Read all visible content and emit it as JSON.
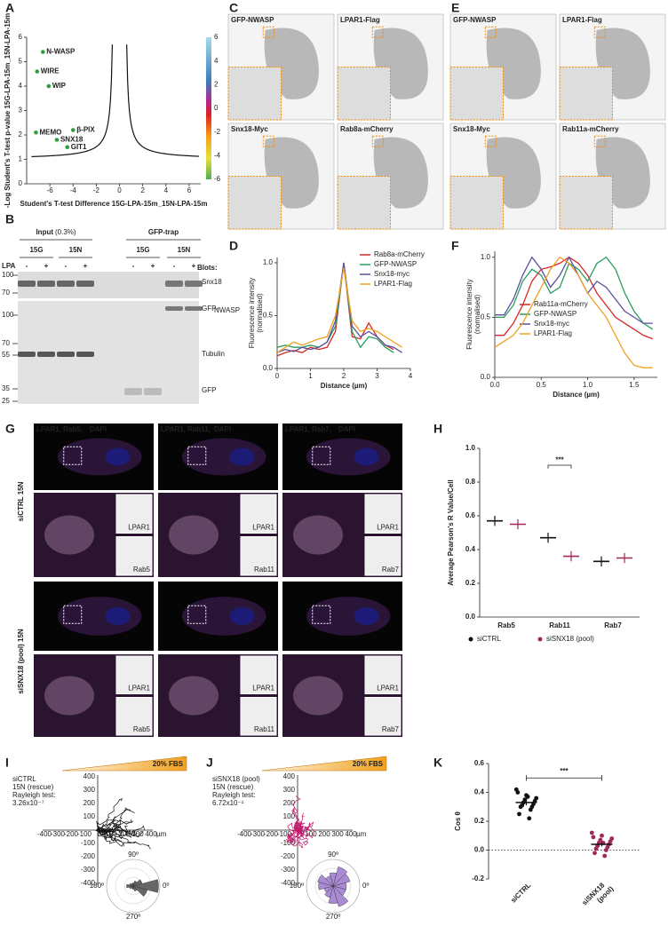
{
  "panel_labels": [
    "A",
    "B",
    "C",
    "D",
    "E",
    "F",
    "G",
    "H",
    "I",
    "J",
    "K"
  ],
  "A": {
    "type": "scatter",
    "xlabel": "Student's T-test Difference 15G-LPA-15m_15N-LPA-15m",
    "ylabel": "-Log Student's T-test p-value 15G-LPA-15m_15N-LPA-15m",
    "xlim": [
      -8,
      7
    ],
    "ylim": [
      0,
      6
    ],
    "xticks": [
      -6,
      -4,
      -2,
      0,
      2,
      4,
      6
    ],
    "yticks": [
      0,
      1,
      2,
      3,
      4,
      5,
      6
    ],
    "color": "#2e9e3a",
    "points": [
      {
        "label": "N-WASP",
        "x": -6.6,
        "y": 5.4
      },
      {
        "label": "WIRE",
        "x": -7.1,
        "y": 4.6
      },
      {
        "label": "WIP",
        "x": -6.1,
        "y": 4.0
      },
      {
        "label": "MEMO",
        "x": -7.2,
        "y": 2.1
      },
      {
        "label": "SNX18",
        "x": -5.4,
        "y": 1.8
      },
      {
        "label": "β-PIX",
        "x": -4.0,
        "y": 2.2
      },
      {
        "label": "GIT1",
        "x": -4.5,
        "y": 1.5
      }
    ],
    "colorbar_ticks": [
      6,
      4,
      2,
      0,
      -2,
      -4,
      -6
    ]
  },
  "B": {
    "input": "Input",
    "input_pct": "(0.3%)",
    "trap": "GFP-trap",
    "groups": [
      "15G",
      "15N",
      "15G",
      "15N"
    ],
    "lpa": "LPA",
    "signs": [
      "-",
      "+",
      "-",
      "+",
      "-",
      "+",
      "-",
      "+"
    ],
    "blots": "Blots:",
    "markers": [
      100,
      70,
      100,
      70,
      55,
      35,
      25
    ],
    "bands": [
      "Snx18",
      "GFP-",
      "NWASP",
      "Tubulin",
      "GFP"
    ]
  },
  "C": {
    "images": [
      {
        "text": "GFP-NWASP",
        "color": "#1a9641"
      },
      {
        "text": "LPAR1-Flag",
        "color": "#f08c00"
      },
      {
        "text": "Snx18-Myc",
        "color": "#3b3b9a"
      },
      {
        "text": "Rab8a-mCherry",
        "color": "#d42020"
      }
    ]
  },
  "E": {
    "images": [
      {
        "text": "GFP-NWASP",
        "color": "#1a9641"
      },
      {
        "text": "LPAR1-Flag",
        "color": "#f08c00"
      },
      {
        "text": "Snx18-Myc",
        "color": "#3b3b9a"
      },
      {
        "text": "Rab11a-mCherry",
        "color": "#d42020"
      }
    ]
  },
  "D": {
    "type": "line",
    "xlabel": "Distance (µm)",
    "ylabel": [
      "Fluorescence intensity",
      "(normalised)"
    ],
    "xlim": [
      0,
      4
    ],
    "ylim": [
      0,
      1.05
    ],
    "xticks": [
      0,
      1,
      2,
      3,
      4
    ],
    "yticks": [
      {
        "value": 0,
        "label": "0.0"
      },
      0.5,
      {
        "value": 1,
        "label": "1.0"
      }
    ],
    "x": [
      0,
      0.25,
      0.5,
      0.75,
      1,
      1.25,
      1.5,
      1.75,
      2,
      2.25,
      2.5,
      2.75,
      3,
      3.25,
      3.5,
      3.75,
      4
    ],
    "series": [
      {
        "name": "Rab8a-mCherry",
        "color": "#d62728",
        "values": [
          0.12,
          0.15,
          0.17,
          0.15,
          0.2,
          0.18,
          0.2,
          0.35,
          1.0,
          0.3,
          0.28,
          0.43,
          0.3,
          0.22,
          0.18,
          null,
          null
        ]
      },
      {
        "name": "GFP-NWASP",
        "color": "#2a9d5c",
        "values": [
          0.2,
          0.22,
          0.2,
          0.2,
          0.22,
          0.2,
          0.25,
          0.4,
          0.98,
          0.35,
          0.2,
          0.3,
          0.28,
          0.2,
          0.15,
          null,
          null
        ]
      },
      {
        "name": "Snx18-myc",
        "color": "#5a4fa0",
        "values": [
          0.15,
          0.18,
          0.16,
          0.2,
          0.18,
          0.2,
          0.25,
          0.45,
          1.0,
          0.4,
          0.3,
          0.35,
          0.3,
          0.22,
          0.2,
          0.15,
          null
        ]
      },
      {
        "name": "LPAR1-Flag",
        "color": "#f0a020",
        "values": [
          0.15,
          0.2,
          0.25,
          0.22,
          0.25,
          0.28,
          0.3,
          0.5,
          0.95,
          0.45,
          0.35,
          0.38,
          0.35,
          0.3,
          0.25,
          0.2,
          null
        ]
      }
    ]
  },
  "F": {
    "type": "line",
    "xlabel": "Distance (µm)",
    "ylabel": [
      "Fluorescence intensity",
      "(normalised)"
    ],
    "xlim": [
      0,
      1.75
    ],
    "ylim": [
      0,
      1.05
    ],
    "xticks": [
      {
        "value": 0,
        "label": "0.0"
      },
      0.5,
      {
        "value": 1,
        "label": "1.0"
      },
      1.5
    ],
    "yticks": [
      {
        "value": 0,
        "label": "0.0"
      },
      0.5,
      {
        "value": 1,
        "label": "1.0"
      }
    ],
    "x": [
      0,
      0.1,
      0.2,
      0.3,
      0.4,
      0.5,
      0.6,
      0.7,
      0.8,
      0.9,
      1.0,
      1.1,
      1.2,
      1.3,
      1.4,
      1.5,
      1.6,
      1.7
    ],
    "series": [
      {
        "name": "Rab11a-mCherry",
        "color": "#d62728",
        "values": [
          0.35,
          0.35,
          0.45,
          0.6,
          0.8,
          0.9,
          0.92,
          0.95,
          1.0,
          0.95,
          0.85,
          0.7,
          0.6,
          0.5,
          0.45,
          0.4,
          0.35,
          0.32
        ]
      },
      {
        "name": "GFP-NWASP",
        "color": "#2a9d5c",
        "values": [
          0.5,
          0.5,
          0.6,
          0.8,
          0.9,
          0.85,
          0.7,
          0.75,
          0.95,
          0.9,
          0.8,
          0.95,
          1.0,
          0.9,
          0.7,
          0.55,
          0.45,
          0.4
        ]
      },
      {
        "name": "Snx18-myc",
        "color": "#5a4fa0",
        "values": [
          0.52,
          0.52,
          0.65,
          0.85,
          1.0,
          0.9,
          0.75,
          0.85,
          1.0,
          0.85,
          0.7,
          0.8,
          0.75,
          0.65,
          0.55,
          0.5,
          0.45,
          0.45
        ]
      },
      {
        "name": "LPAR1-Flag",
        "color": "#f0a020",
        "values": [
          0.25,
          0.3,
          0.35,
          0.45,
          0.6,
          0.75,
          0.9,
          1.0,
          0.95,
          0.85,
          0.7,
          0.6,
          0.5,
          0.35,
          0.2,
          0.1,
          0.08,
          0.08
        ]
      }
    ]
  },
  "G": {
    "rows": [
      "siCTRL 15N",
      "siSNX18 (pool) 15N"
    ],
    "channel_colors": [
      "#4fd04f",
      "#e060e0",
      "#6a6aff"
    ],
    "columns": [
      {
        "channels": [
          "LPAR1,",
          "Rab5,",
          "DAPI"
        ],
        "insets": [
          "LPAR1",
          "Rab5"
        ]
      },
      {
        "channels": [
          "LPAR1,",
          "Rab11,",
          "DAPI"
        ],
        "insets": [
          "LPAR1",
          "Rab11"
        ]
      },
      {
        "channels": [
          "LPAR1,",
          "Rab7,",
          "DAPI"
        ],
        "insets": [
          "LPAR1",
          "Rab7"
        ]
      }
    ]
  },
  "H": {
    "type": "dot",
    "ylabel": "Average Pearson's R Value/Cell",
    "categories": [
      "Rab5",
      "Rab11",
      "Rab7"
    ],
    "ylim": [
      0,
      1.0
    ],
    "yticks": [
      {
        "value": 0,
        "label": "0.0"
      },
      0.2,
      0.4,
      0.6,
      0.8,
      {
        "value": 1,
        "label": "1.0"
      }
    ],
    "series": [
      {
        "name": "siCTRL",
        "color": "#111111",
        "values": [
          0.57,
          0.47,
          0.33
        ],
        "sem": [
          0.03,
          0.03,
          0.03
        ]
      },
      {
        "name": "siSNX18 (pool)",
        "color": "#a0285a",
        "values": [
          0.55,
          0.36,
          0.35
        ],
        "sem": [
          0.03,
          0.03,
          0.03
        ]
      }
    ],
    "significance": {
      "text": "***",
      "category": 1
    }
  },
  "I": {
    "gradient": "20% FBS",
    "lines": [
      "siCTRL",
      "15N (rescue)",
      "Rayleigh test:",
      "3.26x10⁻⁷"
    ],
    "axis_ticks": [
      -400,
      -300,
      -200,
      -100,
      100,
      200,
      300,
      400
    ],
    "unit": "µm",
    "angles": [
      "90º",
      "180º",
      "270º",
      "0º"
    ],
    "track_color": "#111111",
    "rose_color": "#666666",
    "rose": [
      0.95,
      0.35,
      0.2,
      0.12,
      0.1,
      0.15,
      0.25,
      0.15,
      0.1,
      0.12,
      0.2,
      0.55
    ]
  },
  "J": {
    "gradient": "20% FBS",
    "lines": [
      "siSNX18 (pool)",
      "15N (rescue)",
      "Rayleigh test:",
      "6.72x10⁻¹"
    ],
    "axis_ticks": [
      -400,
      -300,
      -200,
      -100,
      100,
      200,
      300,
      400
    ],
    "unit": "µm",
    "angles": [
      "90º",
      "180º",
      "270º",
      "0º"
    ],
    "track_color": "#c2186b",
    "rose_color": "#a98bd3",
    "rose": [
      0.5,
      0.65,
      0.75,
      0.5,
      0.4,
      0.6,
      0.55,
      0.35,
      0.45,
      0.65,
      0.8,
      0.5
    ]
  },
  "K": {
    "type": "dot",
    "ylabel": "Cos θ",
    "categories": [
      "siCTRL",
      "siSNX18",
      "(pool)"
    ],
    "ylim": [
      -0.2,
      0.6
    ],
    "yticks": [
      -0.2,
      {
        "value": 0,
        "label": "0.0"
      },
      0.2,
      0.4,
      0.6
    ],
    "series": [
      {
        "color": "#111111",
        "mean": 0.33,
        "sem": 0.02,
        "values": [
          0.42,
          0.38,
          0.36,
          0.35,
          0.34,
          0.33,
          0.32,
          0.31,
          0.3,
          0.3,
          0.28,
          0.25,
          0.22,
          0.4,
          0.37
        ]
      },
      {
        "color": "#a0285a",
        "mean": 0.04,
        "sem": 0.015,
        "values": [
          0.12,
          0.1,
          0.08,
          0.07,
          0.06,
          0.05,
          0.04,
          0.03,
          0.02,
          0.01,
          0.0,
          -0.02,
          -0.04,
          0.09,
          0.05
        ]
      }
    ],
    "significance": "***"
  }
}
